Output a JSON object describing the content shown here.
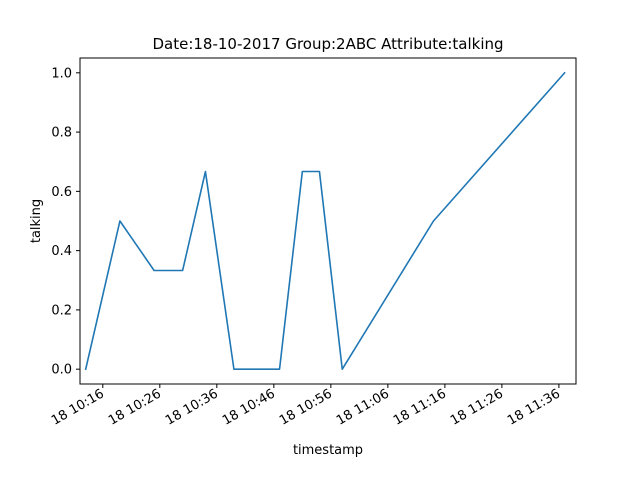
{
  "chart_data": {
    "type": "line",
    "title": "Date:18-10-2017  Group:2ABC Attribute:talking",
    "xlabel": "timestamp",
    "ylabel": "talking",
    "x_axis_type": "datetime",
    "x_format": "DD HH:MM",
    "xlim": [
      "2017-10-18 10:12",
      "2017-10-18 11:39"
    ],
    "ylim": [
      -0.05,
      1.05
    ],
    "xticks": [
      {
        "t": "2017-10-18 10:16",
        "label": "18 10:16"
      },
      {
        "t": "2017-10-18 10:26",
        "label": "18 10:26"
      },
      {
        "t": "2017-10-18 10:36",
        "label": "18 10:36"
      },
      {
        "t": "2017-10-18 10:46",
        "label": "18 10:46"
      },
      {
        "t": "2017-10-18 10:56",
        "label": "18 10:56"
      },
      {
        "t": "2017-10-18 11:06",
        "label": "18 11:06"
      },
      {
        "t": "2017-10-18 11:16",
        "label": "18 11:16"
      },
      {
        "t": "2017-10-18 11:26",
        "label": "18 11:26"
      },
      {
        "t": "2017-10-18 11:36",
        "label": "18 11:36"
      }
    ],
    "yticks": [
      {
        "v": 0.0,
        "label": "0.0"
      },
      {
        "v": 0.2,
        "label": "0.2"
      },
      {
        "v": 0.4,
        "label": "0.4"
      },
      {
        "v": 0.6,
        "label": "0.6"
      },
      {
        "v": 0.8,
        "label": "0.8"
      },
      {
        "v": 1.0,
        "label": "1.0"
      }
    ],
    "grid": false,
    "legend": false,
    "series": [
      {
        "color": "#1f77b4",
        "x": [
          "2017-10-18 10:13",
          "2017-10-18 10:19",
          "2017-10-18 10:25",
          "2017-10-18 10:30",
          "2017-10-18 10:34",
          "2017-10-18 10:39",
          "2017-10-18 10:47",
          "2017-10-18 10:51",
          "2017-10-18 10:54",
          "2017-10-18 10:58",
          "2017-10-18 11:14",
          "2017-10-18 11:37"
        ],
        "y": [
          0.0,
          0.5,
          0.333,
          0.333,
          0.667,
          0.0,
          0.0,
          0.667,
          0.667,
          0.0,
          0.5,
          1.0
        ]
      }
    ]
  }
}
